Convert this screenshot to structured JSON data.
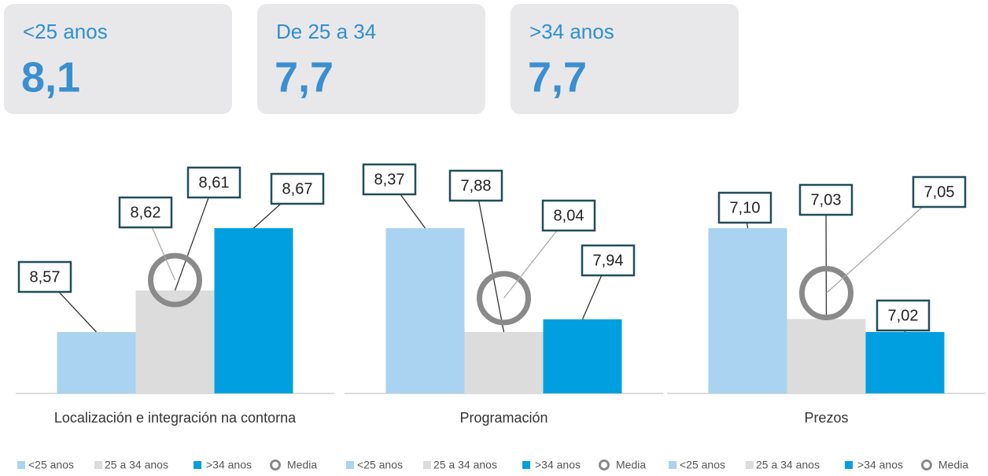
{
  "cards": [
    {
      "label": "<25 anos",
      "value": "8,1"
    },
    {
      "label": "De 25 a 34",
      "value": "7,7"
    },
    {
      "label": ">34 anos",
      "value": "7,7"
    }
  ],
  "chart_data": [
    {
      "type": "bar",
      "categories": [
        "Localización e integración na contorna"
      ],
      "series": [
        {
          "name": "<25 anos",
          "color": "#a9d3f0",
          "values": [
            8.57
          ],
          "value_labels": [
            "8,57"
          ]
        },
        {
          "name": "25 a 34 anos",
          "color": "#dcdcdc",
          "values": [
            8.61
          ],
          "value_labels": [
            "8,61"
          ]
        },
        {
          "name": ">34 anos",
          "color": "#00a0e0",
          "values": [
            8.67
          ],
          "value_labels": [
            "8,67"
          ]
        },
        {
          "name": "Media",
          "type": "marker",
          "color": "#8a8a8a",
          "values": [
            8.62
          ],
          "value_labels": [
            "8,62"
          ]
        }
      ]
    },
    {
      "type": "bar",
      "categories": [
        "Programación"
      ],
      "series": [
        {
          "name": "<25 anos",
          "color": "#a9d3f0",
          "values": [
            8.37
          ],
          "value_labels": [
            "8,37"
          ]
        },
        {
          "name": "25 a 34 anos",
          "color": "#dcdcdc",
          "values": [
            7.88
          ],
          "value_labels": [
            "7,88"
          ]
        },
        {
          "name": ">34 anos",
          "color": "#00a0e0",
          "values": [
            7.94
          ],
          "value_labels": [
            "7,94"
          ]
        },
        {
          "name": "Media",
          "type": "marker",
          "color": "#8a8a8a",
          "values": [
            8.04
          ],
          "value_labels": [
            "8,04"
          ]
        }
      ]
    },
    {
      "type": "bar",
      "categories": [
        "Prezos"
      ],
      "series": [
        {
          "name": "<25 anos",
          "color": "#a9d3f0",
          "values": [
            7.1
          ],
          "value_labels": [
            "7,10"
          ]
        },
        {
          "name": "25 a 34 anos",
          "color": "#dcdcdc",
          "values": [
            7.03
          ],
          "value_labels": [
            "7,03"
          ]
        },
        {
          "name": ">34 anos",
          "color": "#00a0e0",
          "values": [
            7.02
          ],
          "value_labels": [
            "7,02"
          ]
        },
        {
          "name": "Media",
          "type": "marker",
          "color": "#8a8a8a",
          "values": [
            7.05
          ],
          "value_labels": [
            "7,05"
          ]
        }
      ]
    }
  ]
}
